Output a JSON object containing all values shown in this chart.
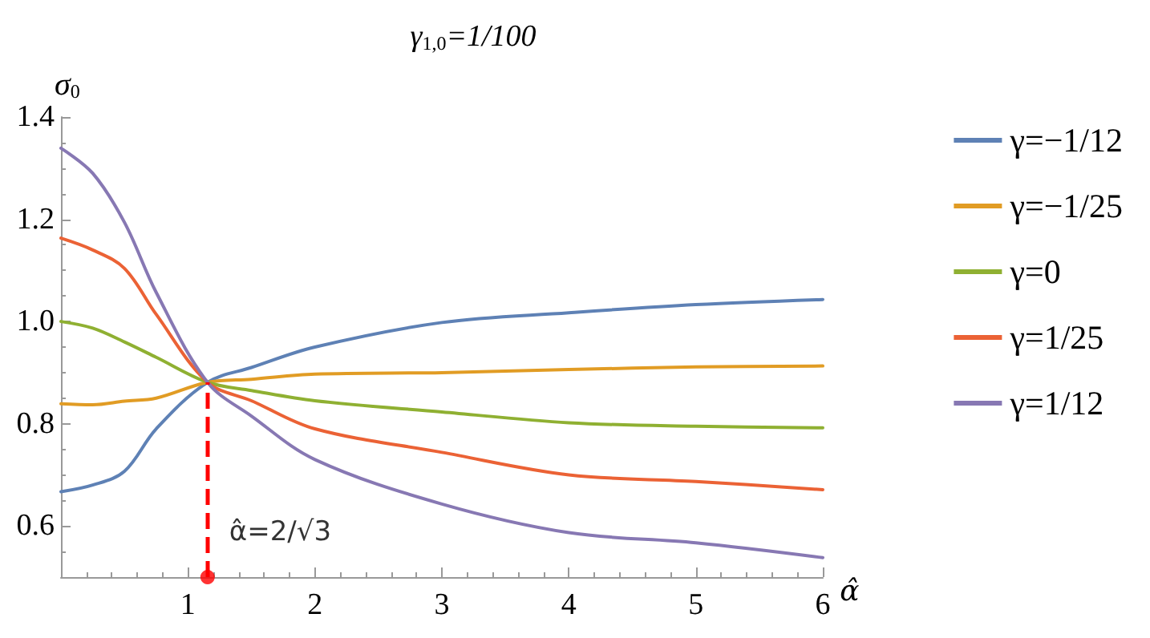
{
  "chart_data": {
    "type": "line",
    "title": "γ$_{1,0}$=1/100",
    "xlabel": "α̂",
    "ylabel": "σ$_{0}$",
    "x": [
      0,
      0.25,
      0.5,
      0.75,
      1.1547,
      1.5,
      2,
      3,
      4,
      5,
      6
    ],
    "series": [
      {
        "name": "γ=−1/12",
        "color": "#5e81b5",
        "values": [
          0.667,
          0.68,
          0.707,
          0.79,
          0.881,
          0.91,
          0.95,
          0.998,
          1.017,
          1.033,
          1.043
        ]
      },
      {
        "name": "γ=−1/25",
        "color": "#e19c24",
        "values": [
          0.839,
          0.837,
          0.844,
          0.85,
          0.881,
          0.887,
          0.897,
          0.9,
          0.906,
          0.911,
          0.913
        ]
      },
      {
        "name": "γ=0",
        "color": "#8fb032",
        "values": [
          1.0,
          0.987,
          0.96,
          0.93,
          0.881,
          0.865,
          0.845,
          0.823,
          0.802,
          0.795,
          0.792
        ]
      },
      {
        "name": "γ=1/25",
        "color": "#eb6235",
        "values": [
          1.163,
          1.14,
          1.104,
          1.014,
          0.881,
          0.845,
          0.79,
          0.744,
          0.7,
          0.687,
          0.671
        ]
      },
      {
        "name": "γ=1/12",
        "color": "#8778b3",
        "values": [
          1.339,
          1.29,
          1.194,
          1.057,
          0.881,
          0.815,
          0.73,
          0.643,
          0.587,
          0.567,
          0.538
        ]
      }
    ],
    "xlim": [
      0,
      6
    ],
    "xticks": [
      1,
      2,
      3,
      4,
      5,
      6
    ],
    "ylim": [
      0.5,
      1.4
    ],
    "yticks": [
      {
        "value": 0.6,
        "label": "0.6"
      },
      {
        "value": 0.8,
        "label": "0.8"
      },
      {
        "value": 1.0,
        "label": "1.0"
      },
      {
        "value": 1.2,
        "label": "1.2"
      },
      {
        "value": 1.4,
        "label": "1.4"
      }
    ],
    "ref_lines": [
      {
        "axis": "x",
        "value": 1.1547,
        "color": "#ff0000",
        "line_style": "dashed"
      }
    ],
    "annotations": [
      {
        "text": "α̂=2/√3",
        "x": 1.1547,
        "y": 0.5
      }
    ],
    "grid": false,
    "legend": "right",
    "marker": "none",
    "line_style": "solid"
  }
}
